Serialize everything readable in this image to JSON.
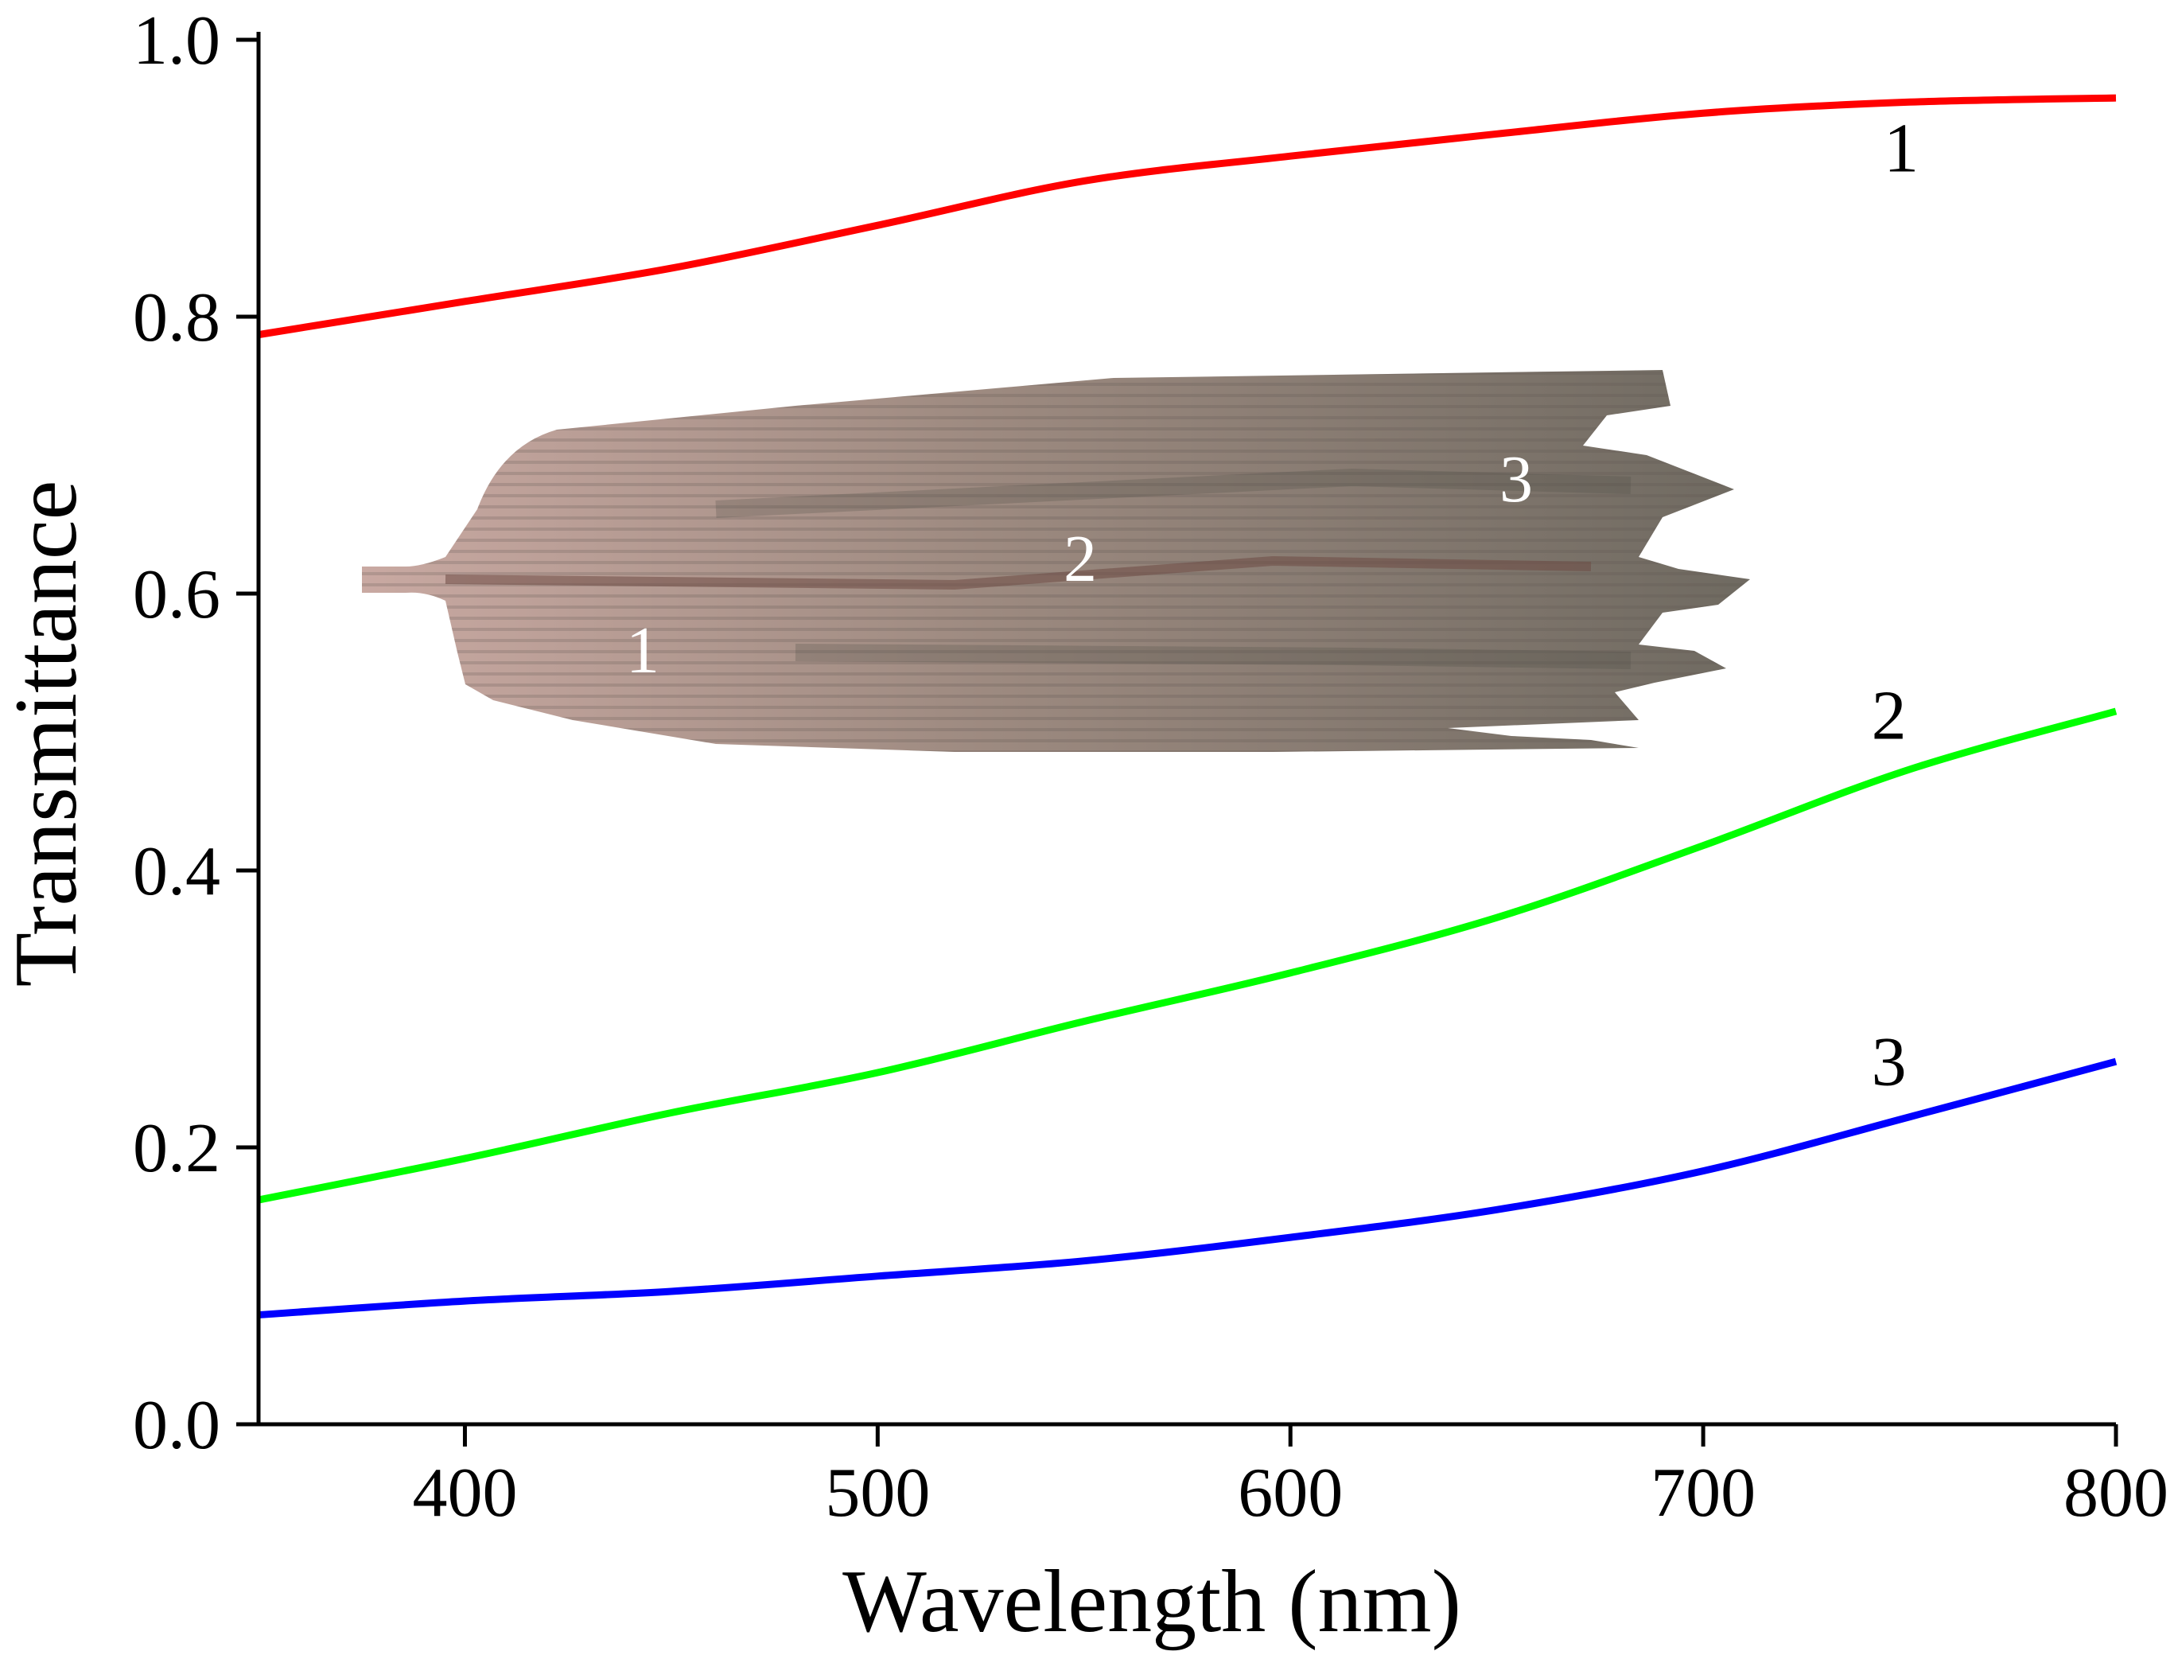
{
  "chart_data": {
    "type": "line",
    "title": "",
    "xlabel": "Wavelength (nm)",
    "ylabel": "Transmittance",
    "xlim": [
      350,
      800
    ],
    "ylim": [
      0.0,
      1.0
    ],
    "x_ticks": [
      400,
      500,
      600,
      700,
      800
    ],
    "x_tick_labels": [
      "400",
      "500",
      "600",
      "700",
      "800"
    ],
    "y_ticks": [
      0.0,
      0.2,
      0.4,
      0.6,
      0.8,
      1.0
    ],
    "y_tick_labels": [
      "0.0",
      "0.2",
      "0.4",
      "0.6",
      "0.8",
      "1.0"
    ],
    "grid": false,
    "legend": "none",
    "x": [
      350,
      400,
      450,
      500,
      550,
      600,
      650,
      700,
      750,
      800
    ],
    "series": [
      {
        "label": "1",
        "color": "#ff0000",
        "values": [
          0.787,
          0.811,
          0.835,
          0.866,
          0.898,
          0.916,
          0.932,
          0.947,
          0.955,
          0.958
        ],
        "label_at": [
          748,
          0.905
        ]
      },
      {
        "label": "2",
        "color": "#00ff00",
        "values": [
          0.162,
          0.192,
          0.225,
          0.254,
          0.291,
          0.326,
          0.366,
          0.418,
          0.473,
          0.515
        ],
        "label_at": [
          745,
          0.495
        ]
      },
      {
        "label": "3",
        "color": "#0000ff",
        "values": [
          0.079,
          0.089,
          0.096,
          0.107,
          0.118,
          0.135,
          0.155,
          0.183,
          0.222,
          0.262
        ],
        "label_at": [
          745,
          0.245
        ]
      }
    ],
    "inset_image": {
      "description_icon": "wing-scale-micrograph",
      "labels": [
        "1",
        "2",
        "3"
      ]
    }
  }
}
